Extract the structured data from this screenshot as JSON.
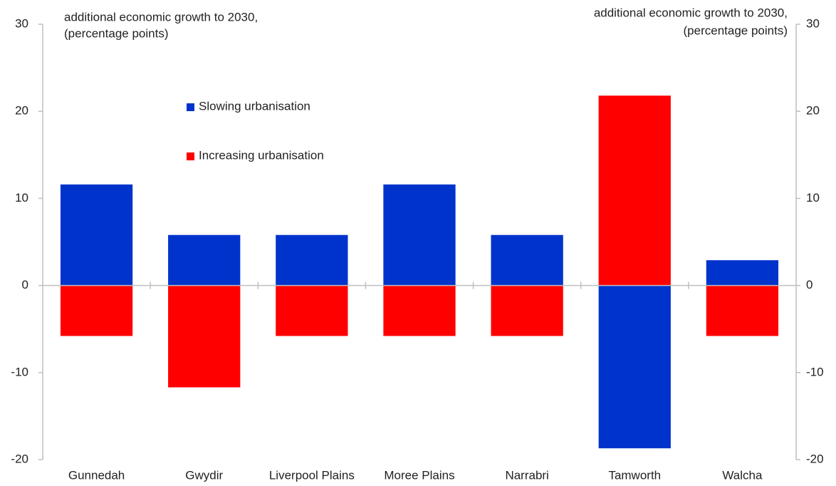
{
  "chart_data": {
    "type": "bar",
    "stacked": true,
    "y_label": [
      "additional economic growth to 2030,",
      "(percentage points)"
    ],
    "y2_label": [
      "additional economic growth to 2030,",
      "(percentage points)"
    ],
    "categories": [
      "Gunnedah",
      "Gwydir",
      "Liverpool Plains",
      "Moree Plains",
      "Narrabri",
      "Tamworth",
      "Walcha"
    ],
    "series": [
      {
        "name": "Slowing urbanisation",
        "color": "#0033cc",
        "values": [
          11.6,
          5.8,
          5.8,
          11.6,
          5.8,
          -18.7,
          2.9
        ]
      },
      {
        "name": "Increasing urbanisation",
        "color": "#ff0000",
        "values": [
          -5.8,
          -11.7,
          -5.8,
          -5.8,
          -5.8,
          21.8,
          -5.8
        ]
      }
    ],
    "ylim": [
      -20,
      30
    ],
    "yticks": [
      -20,
      -10,
      0,
      10,
      20,
      30
    ],
    "y2lim": [
      -20,
      30
    ],
    "y2ticks": [
      -20,
      -10,
      0,
      10,
      20,
      30
    ],
    "grid": false
  }
}
